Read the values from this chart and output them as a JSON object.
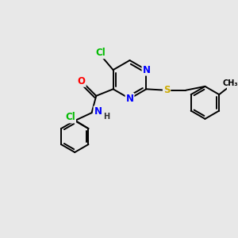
{
  "background_color": "#e8e8e8",
  "bond_color": "#000000",
  "atom_colors": {
    "Cl": "#00bb00",
    "N": "#0000ff",
    "O": "#ff0000",
    "S": "#ccaa00",
    "C": "#000000",
    "H": "#333333"
  },
  "fig_w": 3.0,
  "fig_h": 3.0,
  "dpi": 100,
  "xlim": [
    0,
    10
  ],
  "ylim": [
    0,
    10
  ],
  "font_size_atoms": 8.5,
  "font_size_small": 7,
  "lw": 1.4
}
